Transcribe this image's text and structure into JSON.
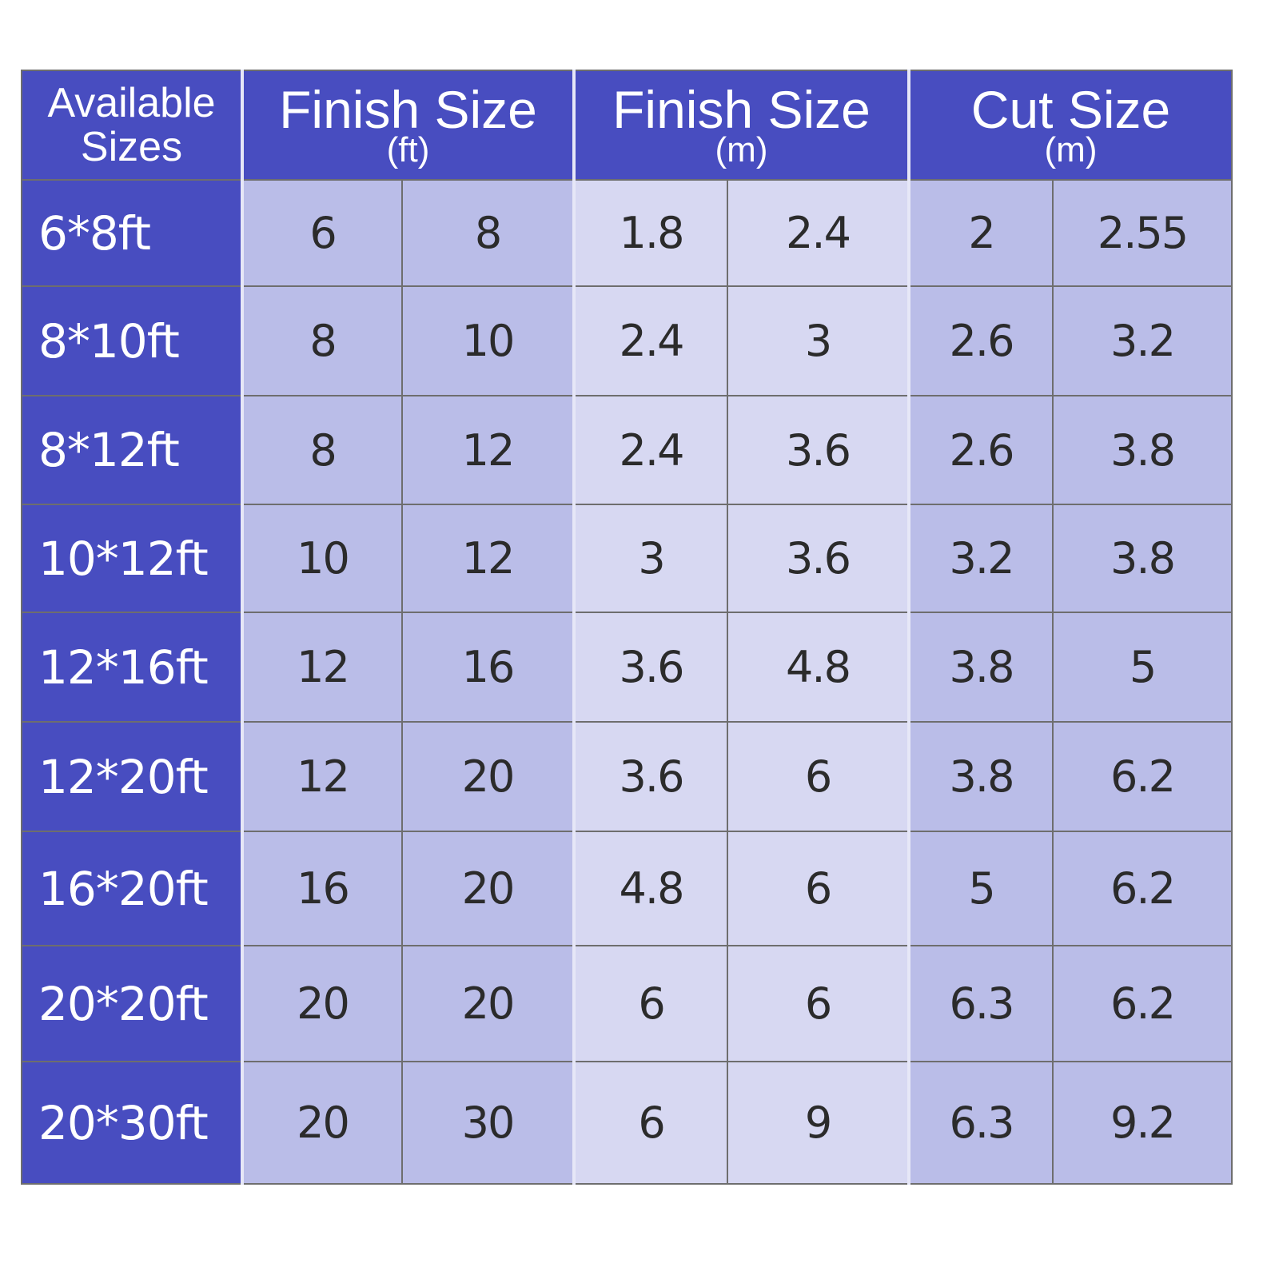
{
  "header": {
    "available": "Available Sizes",
    "finish_ft": {
      "title": "Finish Size",
      "unit": "(ft)"
    },
    "finish_m": {
      "title": "Finish Size",
      "unit": "(m)"
    },
    "cut_m": {
      "title": "Cut Size",
      "unit": "(m)"
    }
  },
  "colors": {
    "header": "#484dc0",
    "ft_cells": "#babde8",
    "m_cells": "#d7d8f2",
    "cut_cells": "#babde8",
    "grid": "#6e6e6e"
  },
  "rows": [
    {
      "label": "6*8ft",
      "ft": [
        "6",
        "8"
      ],
      "m": [
        "1.8",
        "2.4"
      ],
      "cut": [
        "2",
        "2.55"
      ]
    },
    {
      "label": "8*10ft",
      "ft": [
        "8",
        "10"
      ],
      "m": [
        "2.4",
        "3"
      ],
      "cut": [
        "2.6",
        "3.2"
      ]
    },
    {
      "label": "8*12ft",
      "ft": [
        "8",
        "12"
      ],
      "m": [
        "2.4",
        "3.6"
      ],
      "cut": [
        "2.6",
        "3.8"
      ]
    },
    {
      "label": "10*12ft",
      "ft": [
        "10",
        "12"
      ],
      "m": [
        "3",
        "3.6"
      ],
      "cut": [
        "3.2",
        "3.8"
      ]
    },
    {
      "label": "12*16ft",
      "ft": [
        "12",
        "16"
      ],
      "m": [
        "3.6",
        "4.8"
      ],
      "cut": [
        "3.8",
        "5"
      ]
    },
    {
      "label": "12*20ft",
      "ft": [
        "12",
        "20"
      ],
      "m": [
        "3.6",
        "6"
      ],
      "cut": [
        "3.8",
        "6.2"
      ]
    },
    {
      "label": "16*20ft",
      "ft": [
        "16",
        "20"
      ],
      "m": [
        "4.8",
        "6"
      ],
      "cut": [
        "5",
        "6.2"
      ]
    },
    {
      "label": "20*20ft",
      "ft": [
        "20",
        "20"
      ],
      "m": [
        "6",
        "6"
      ],
      "cut": [
        "6.3",
        "6.2"
      ]
    },
    {
      "label": "20*30ft",
      "ft": [
        "20",
        "30"
      ],
      "m": [
        "6",
        "9"
      ],
      "cut": [
        "6.3",
        "9.2"
      ]
    }
  ]
}
